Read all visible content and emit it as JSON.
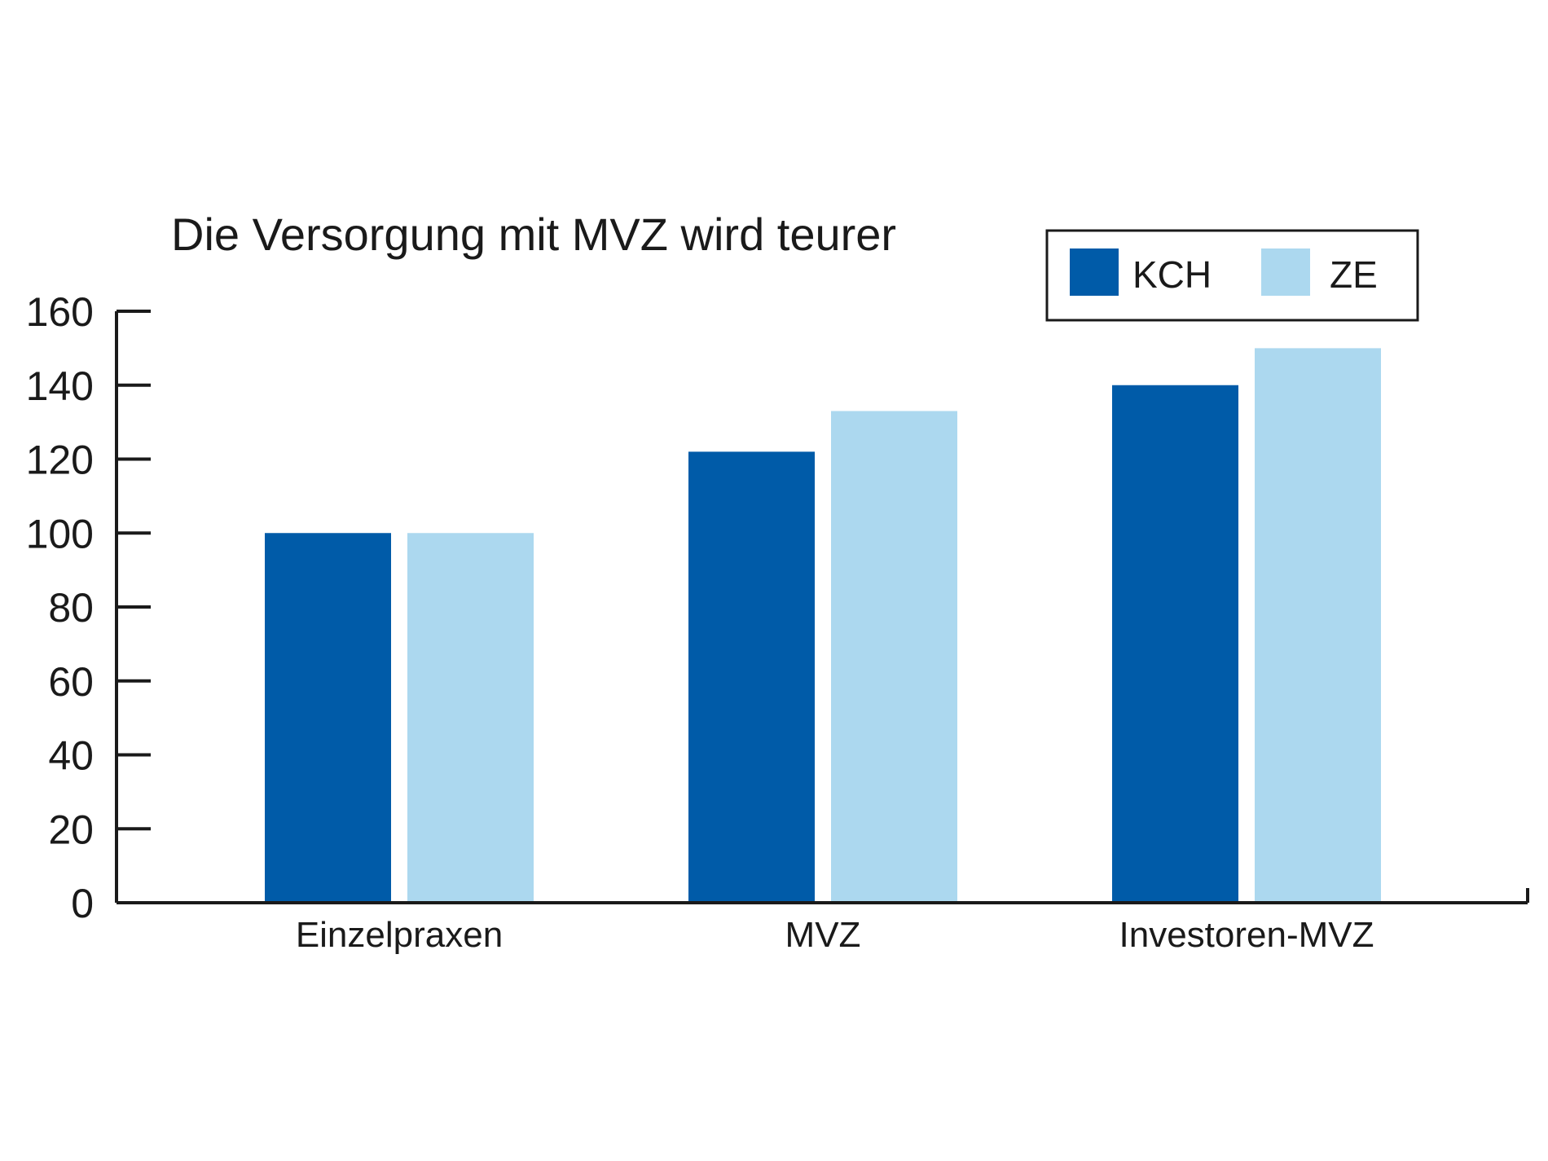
{
  "chart_data": {
    "type": "bar",
    "title": "Die Versorgung mit MVZ wird teurer",
    "categories": [
      "Einzelpraxen",
      "MVZ",
      "Investoren-MVZ"
    ],
    "series": [
      {
        "name": "KCH",
        "values": [
          100,
          122,
          140
        ],
        "color": "#005ba8"
      },
      {
        "name": "ZE",
        "values": [
          100,
          133,
          150
        ],
        "color": "#acd8ef"
      }
    ],
    "ylim": [
      0,
      160
    ],
    "yticks": [
      0,
      20,
      40,
      60,
      80,
      100,
      120,
      140,
      160
    ],
    "ytick_labels": [
      "0",
      "20",
      "40",
      "60",
      "80",
      "100",
      "120",
      "140",
      "160"
    ],
    "grid": false,
    "legend_position": "top-right"
  }
}
